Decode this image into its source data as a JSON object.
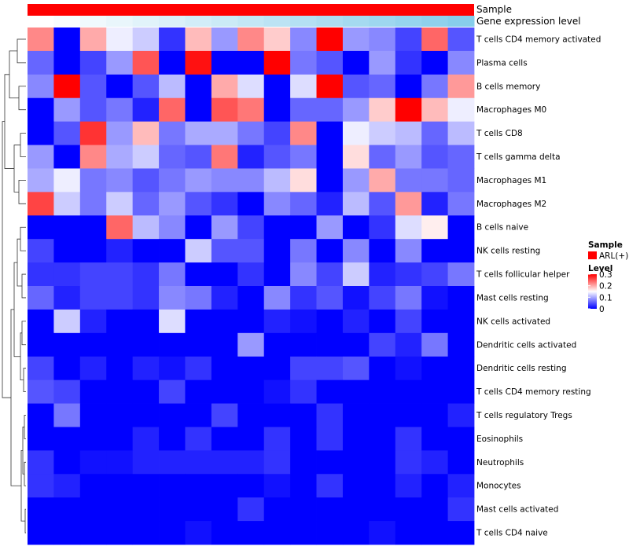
{
  "chart_data": {
    "type": "heatmap",
    "annotations": [
      {
        "label": "Sample",
        "color": "#ff0000"
      },
      {
        "label": "Gene expression level",
        "gradient": [
          "#ffffff",
          "#87ceeb"
        ]
      }
    ],
    "row_labels": [
      "T cells CD4 memory activated",
      "Plasma cells",
      "B cells memory",
      "Macrophages M0",
      "T cells CD8",
      "T cells gamma delta",
      "Macrophages M1",
      "Macrophages M2",
      "B cells naive",
      "NK cells resting",
      "T cells follicular helper",
      "Mast cells resting",
      "NK cells activated",
      "Dendritic cells activated",
      "Dendritic cells resting",
      "T cells CD4 memory resting",
      "T cells regulatory  Tregs",
      "Eosinophils",
      "Neutrophils",
      "Monocytes",
      "Mast cells activated",
      "T cells CD4 naive"
    ],
    "values": [
      [
        0.22,
        0.0,
        0.2,
        0.14,
        0.12,
        0.03,
        0.19,
        0.09,
        0.22,
        0.18,
        0.08,
        0.3,
        0.09,
        0.08,
        0.04,
        0.24,
        0.05
      ],
      [
        0.06,
        0.0,
        0.04,
        0.09,
        0.25,
        0.0,
        0.29,
        0.0,
        0.0,
        0.3,
        0.07,
        0.05,
        0.0,
        0.09,
        0.03,
        0.0,
        0.08
      ],
      [
        0.08,
        0.3,
        0.05,
        0.0,
        0.05,
        0.11,
        0.0,
        0.2,
        0.13,
        0.0,
        0.13,
        0.3,
        0.05,
        0.06,
        0.0,
        0.07,
        0.21
      ],
      [
        0.0,
        0.09,
        0.05,
        0.07,
        0.02,
        0.24,
        0.0,
        0.25,
        0.23,
        0.0,
        0.06,
        0.06,
        0.09,
        0.18,
        0.3,
        0.19,
        0.14
      ],
      [
        0.0,
        0.05,
        0.27,
        0.09,
        0.19,
        0.07,
        0.1,
        0.1,
        0.07,
        0.04,
        0.22,
        0.0,
        0.14,
        0.12,
        0.11,
        0.06,
        0.11
      ],
      [
        0.09,
        0.0,
        0.22,
        0.1,
        0.12,
        0.06,
        0.05,
        0.23,
        0.02,
        0.05,
        0.07,
        0.0,
        0.17,
        0.06,
        0.09,
        0.05,
        0.06
      ],
      [
        0.1,
        0.14,
        0.07,
        0.08,
        0.05,
        0.07,
        0.09,
        0.08,
        0.08,
        0.11,
        0.17,
        0.0,
        0.09,
        0.2,
        0.07,
        0.07,
        0.06
      ],
      [
        0.26,
        0.12,
        0.07,
        0.12,
        0.06,
        0.09,
        0.05,
        0.03,
        0.0,
        0.08,
        0.06,
        0.02,
        0.11,
        0.05,
        0.21,
        0.02,
        0.07
      ],
      [
        0.0,
        0.0,
        0.0,
        0.24,
        0.11,
        0.08,
        0.0,
        0.09,
        0.04,
        0.0,
        0.0,
        0.09,
        0.0,
        0.03,
        0.13,
        0.16,
        0.0
      ],
      [
        0.04,
        0.0,
        0.0,
        0.02,
        0.0,
        0.0,
        0.12,
        0.05,
        0.05,
        0.0,
        0.07,
        0.0,
        0.08,
        0.0,
        0.08,
        0.0,
        0.0
      ],
      [
        0.03,
        0.03,
        0.04,
        0.04,
        0.03,
        0.07,
        0.0,
        0.0,
        0.03,
        0.0,
        0.08,
        0.04,
        0.12,
        0.02,
        0.03,
        0.04,
        0.07
      ],
      [
        0.06,
        0.02,
        0.04,
        0.04,
        0.03,
        0.08,
        0.07,
        0.02,
        0.0,
        0.08,
        0.03,
        0.05,
        0.01,
        0.04,
        0.07,
        0.01,
        0.0
      ],
      [
        0.0,
        0.12,
        0.02,
        0.0,
        0.0,
        0.13,
        0.0,
        0.0,
        0.0,
        0.02,
        0.01,
        0.0,
        0.02,
        0.0,
        0.04,
        0.0,
        0.0
      ],
      [
        0.0,
        0.0,
        0.0,
        0.0,
        0.0,
        0.0,
        0.0,
        0.0,
        0.09,
        0.0,
        0.0,
        0.0,
        0.0,
        0.04,
        0.02,
        0.07,
        0.0
      ],
      [
        0.04,
        0.0,
        0.02,
        0.0,
        0.02,
        0.01,
        0.03,
        0.0,
        0.0,
        0.0,
        0.04,
        0.04,
        0.05,
        0.0,
        0.01,
        0.0,
        0.0
      ],
      [
        0.05,
        0.04,
        0.0,
        0.0,
        0.0,
        0.04,
        0.0,
        0.0,
        0.0,
        0.01,
        0.03,
        0.0,
        0.0,
        0.0,
        0.0,
        0.0,
        0.0
      ],
      [
        0.0,
        0.07,
        0.0,
        0.0,
        0.0,
        0.0,
        0.0,
        0.04,
        0.0,
        0.0,
        0.0,
        0.03,
        0.0,
        0.0,
        0.0,
        0.0,
        0.02
      ],
      [
        0.0,
        0.0,
        0.0,
        0.0,
        0.02,
        0.0,
        0.03,
        0.0,
        0.0,
        0.03,
        0.0,
        0.03,
        0.0,
        0.0,
        0.03,
        0.0,
        0.0
      ],
      [
        0.03,
        0.0,
        0.01,
        0.01,
        0.02,
        0.02,
        0.02,
        0.02,
        0.02,
        0.03,
        0.0,
        0.0,
        0.0,
        0.0,
        0.03,
        0.02,
        0.0
      ],
      [
        0.03,
        0.02,
        0.0,
        0.0,
        0.0,
        0.0,
        0.0,
        0.0,
        0.0,
        0.01,
        0.0,
        0.03,
        0.0,
        0.0,
        0.02,
        0.0,
        0.02
      ],
      [
        0.0,
        0.0,
        0.0,
        0.0,
        0.0,
        0.0,
        0.0,
        0.0,
        0.03,
        0.0,
        0.0,
        0.0,
        0.0,
        0.0,
        0.0,
        0.0,
        0.03
      ],
      [
        0.0,
        0.0,
        0.0,
        0.0,
        0.0,
        0.0,
        0.01,
        0.0,
        0.0,
        0.0,
        0.0,
        0.0,
        0.0,
        0.01,
        0.0,
        0.0,
        0.0
      ]
    ],
    "color_scale": {
      "min": 0,
      "max": 0.3,
      "colors": [
        "#0000ff",
        "#ffffff",
        "#ff0000"
      ]
    },
    "legend": {
      "sample_title": "Sample",
      "sample_entry": "ARL(+)",
      "sample_color": "#ff0000",
      "level_title": "Level",
      "level_ticks": [
        "0.3",
        "0.2",
        "0.1",
        "0"
      ],
      "placement": "right"
    },
    "row_dendrogram": true,
    "grid": false
  }
}
